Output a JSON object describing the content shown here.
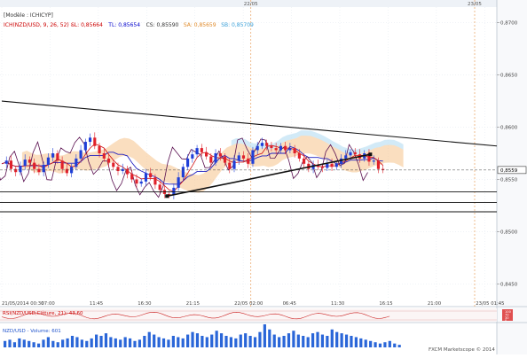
{
  "chart_data": {
    "type": "candlestick",
    "instrument": "NZD/USD",
    "header": {
      "line1": "[Modèle : ICHICYP]",
      "line2": "ICH(NZD/USD, 9, 26, 52) -",
      "legend": [
        {
          "label": "SL: 0,85664",
          "color": "#cc0000"
        },
        {
          "label": "TL: 0,85654",
          "color": "#0000cc"
        },
        {
          "label": "CS: 0,85590",
          "color": "#333333"
        },
        {
          "label": "SA: 0,85659",
          "color": "#e08a2a"
        },
        {
          "label": "SB: 0,85709",
          "color": "#3aa0d8"
        }
      ]
    },
    "price_axis": {
      "ylim": [
        0.8435,
        0.8715
      ],
      "ticks": [
        "0,8700",
        "0,8650",
        "0,8600",
        "0,8550",
        "0,8500",
        "0,8450"
      ],
      "tick_values": [
        0.87,
        0.865,
        0.86,
        0.855,
        0.85,
        0.845
      ],
      "current_price": "0,8559"
    },
    "time_axis": {
      "labels": [
        "21/05/2014 00:30",
        "07:00",
        "11:45",
        "16:30",
        "21:15",
        "22/05 02:00",
        "06:45",
        "11:30",
        "16:15",
        "21:00",
        "23/05 01:45"
      ],
      "day_markers": [
        "22/05",
        "23/05"
      ]
    },
    "close_series": [
      0.8565,
      0.8568,
      0.856,
      0.8557,
      0.8563,
      0.8569,
      0.8566,
      0.856,
      0.8557,
      0.8564,
      0.8571,
      0.8575,
      0.8568,
      0.856,
      0.8556,
      0.8562,
      0.857,
      0.8578,
      0.8586,
      0.859,
      0.8582,
      0.8575,
      0.857,
      0.8566,
      0.8562,
      0.8558,
      0.856,
      0.8555,
      0.855,
      0.8546,
      0.8548,
      0.8556,
      0.8552,
      0.8545,
      0.854,
      0.8536,
      0.8535,
      0.8542,
      0.8552,
      0.8562,
      0.857,
      0.8574,
      0.858,
      0.8576,
      0.8572,
      0.8566,
      0.8575,
      0.8572,
      0.8566,
      0.856,
      0.8568,
      0.8573,
      0.857,
      0.8565,
      0.8578,
      0.8582,
      0.8585,
      0.8582,
      0.858,
      0.8578,
      0.8582,
      0.8578,
      0.858,
      0.8575,
      0.857,
      0.8565,
      0.856,
      0.8564,
      0.8562,
      0.8561,
      0.8565,
      0.8562,
      0.8565,
      0.857,
      0.8573,
      0.8576,
      0.8574,
      0.857,
      0.8575,
      0.8567,
      0.8568,
      0.856,
      0.8559
    ],
    "trendlines": {
      "resistance": {
        "from": [
          "21/05 00:30",
          0.8625
        ],
        "to": [
          "23/05 02:30",
          0.8582
        ]
      },
      "support": {
        "from": [
          "21/05 19:00",
          0.8534
        ],
        "to": [
          "22/05 17:15",
          0.8574
        ]
      },
      "horizontal_levels": [
        0.8538,
        0.8528,
        0.8519
      ]
    },
    "rsi": {
      "label": "RSI(NZD/USD,Clôture, 21): 43,60",
      "ticks": [
        "100",
        "70",
        "30",
        "0"
      ]
    },
    "volume": {
      "label": "NZD/USD - Volume: 601",
      "bars": [
        5,
        6,
        4,
        7,
        6,
        5,
        4,
        3,
        6,
        8,
        5,
        4,
        6,
        7,
        9,
        8,
        6,
        5,
        7,
        10,
        9,
        11,
        8,
        7,
        6,
        8,
        7,
        5,
        6,
        9,
        12,
        10,
        8,
        7,
        6,
        9,
        8,
        7,
        10,
        12,
        11,
        9,
        8,
        10,
        13,
        11,
        9,
        8,
        7,
        10,
        11,
        9,
        8,
        12,
        18,
        14,
        10,
        8,
        9,
        11,
        13,
        10,
        9,
        8,
        11,
        12,
        10,
        9,
        14,
        12,
        11,
        10,
        9,
        8,
        7,
        6,
        5,
        4,
        3,
        4,
        5,
        3,
        2
      ]
    },
    "footer": "FXCM Marketscope © 2014",
    "colors": {
      "bull": "#1f3fd8",
      "bear": "#e0202a",
      "kijun": "#2020c0",
      "tenkan": "#d01010",
      "chikou": "#5a1050",
      "cloud": "#f6c38a",
      "cloud_b": "#bfe1f4",
      "grid": "#e6ecf2"
    }
  }
}
